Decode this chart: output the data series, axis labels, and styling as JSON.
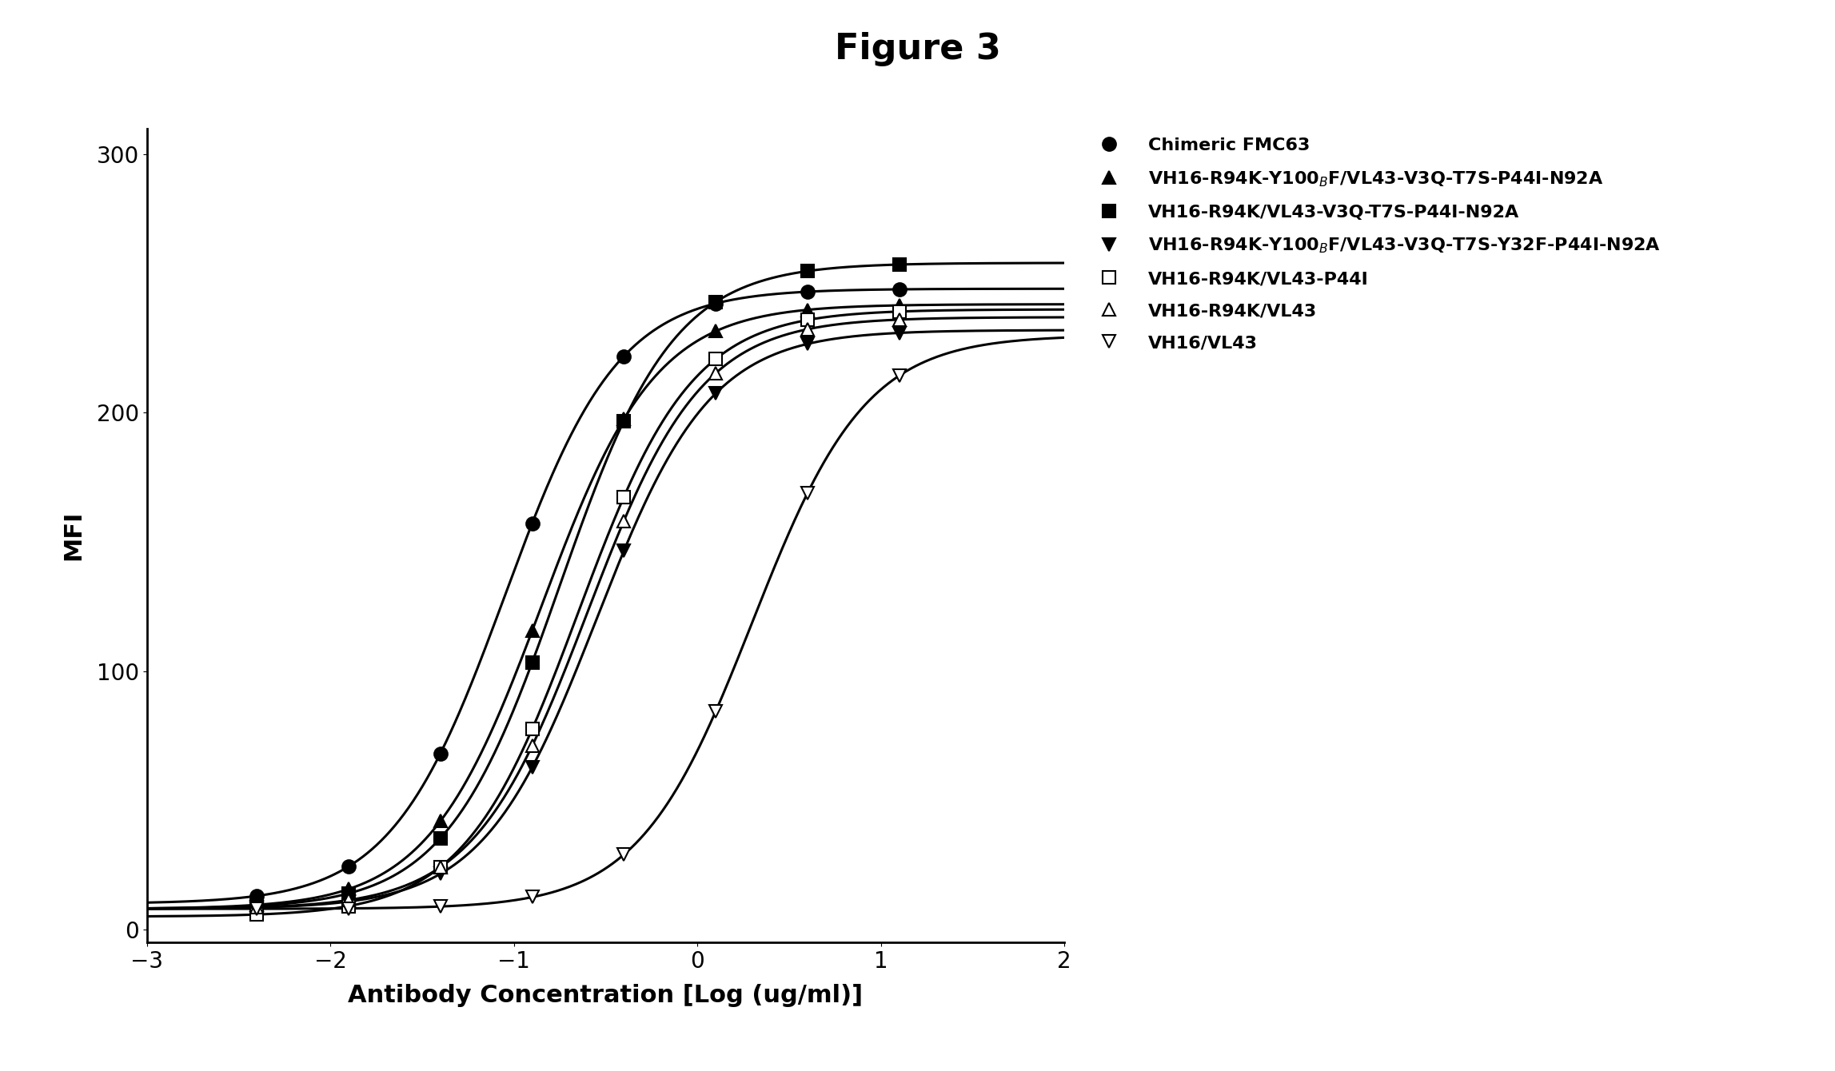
{
  "title": "Figure 3",
  "xlabel": "Antibody Concentration [Log (ug/ml)]",
  "ylabel": "MFI",
  "xlim": [
    -3,
    2
  ],
  "ylim": [
    -5,
    310
  ],
  "xticks": [
    -3,
    -2,
    -1,
    0,
    1,
    2
  ],
  "yticks": [
    0,
    100,
    200,
    300
  ],
  "series": [
    {
      "label": "Chimeric FMC63",
      "label_sub": false,
      "marker": "o",
      "fillstyle": "full",
      "ec50_log": -1.05,
      "bottom": 10,
      "top": 248,
      "hill": 1.4
    },
    {
      "label": "VH16-R94K-Y100$_{B}$F/VL43-V3Q-T7S-P44I-N92A",
      "label_sub": false,
      "marker": "^",
      "fillstyle": "full",
      "ec50_log": -0.85,
      "bottom": 8,
      "top": 242,
      "hill": 1.4
    },
    {
      "label": "VH16-R94K/VL43-V3Q-T7S-P44I-N92A",
      "label_sub": false,
      "marker": "s",
      "fillstyle": "full",
      "ec50_log": -0.75,
      "bottom": 8,
      "top": 258,
      "hill": 1.4
    },
    {
      "label": "VH16-R94K-Y100$_{B}$F/VL43-V3Q-T7S-Y32F-P44I-N92A",
      "label_sub": false,
      "marker": "v",
      "fillstyle": "full",
      "ec50_log": -0.55,
      "bottom": 8,
      "top": 232,
      "hill": 1.4
    },
    {
      "label": "VH16-R94K/VL43-P44I",
      "label_sub": false,
      "marker": "s",
      "fillstyle": "none",
      "ec50_log": -0.65,
      "bottom": 5,
      "top": 240,
      "hill": 1.4
    },
    {
      "label": "VH16-R94K/VL43",
      "label_sub": false,
      "marker": "^",
      "fillstyle": "none",
      "ec50_log": -0.6,
      "bottom": 8,
      "top": 237,
      "hill": 1.4
    },
    {
      "label": "VH16/VL43",
      "label_sub": false,
      "marker": "v",
      "fillstyle": "none",
      "ec50_log": 0.3,
      "bottom": 8,
      "top": 230,
      "hill": 1.4
    }
  ],
  "data_x_all": [
    -2.4,
    -1.9,
    -1.4,
    -0.9,
    -0.4,
    0.1,
    0.6,
    1.1
  ],
  "background_color": "#ffffff",
  "title_fontsize": 32,
  "label_fontsize": 22,
  "tick_fontsize": 20,
  "legend_fontsize": 16,
  "marker_size": 12,
  "line_width": 2.2
}
